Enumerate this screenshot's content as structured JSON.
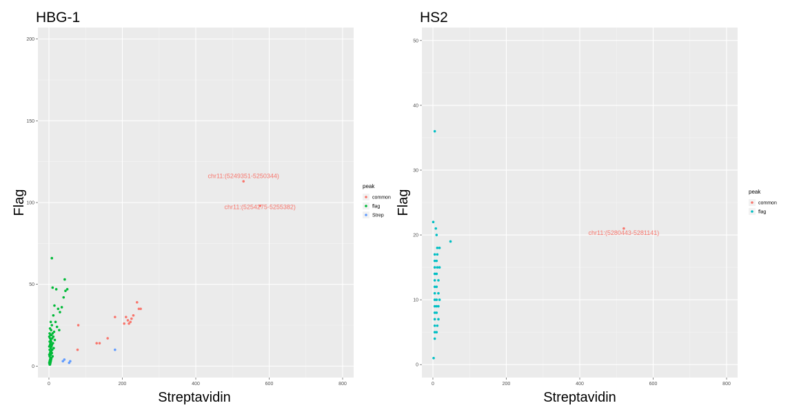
{
  "chart_data": [
    {
      "type": "scatter",
      "title": "HBG-1",
      "xlabel": "Streptavidin",
      "ylabel": "Flag",
      "xlim": [
        -30,
        830
      ],
      "ylim": [
        -7,
        207
      ],
      "xticks": [
        0,
        200,
        400,
        600,
        800
      ],
      "yticks": [
        0,
        50,
        100,
        150,
        200
      ],
      "grid": true,
      "legend": {
        "title": "peak",
        "position": "right"
      },
      "series": [
        {
          "name": "common",
          "color": "#F8766D",
          "x": [
            530,
            575,
            80,
            78,
            130,
            138,
            160,
            180,
            205,
            210,
            215,
            218,
            222,
            225,
            230,
            240,
            245,
            250
          ],
          "y": [
            113,
            98,
            25,
            10,
            14,
            14,
            17,
            30,
            26,
            30,
            28,
            26,
            27,
            29,
            31,
            39,
            35,
            35
          ]
        },
        {
          "name": "flag",
          "color": "#00BA38",
          "x": [
            8,
            43,
            10,
            20,
            50,
            45,
            40,
            25,
            15,
            35,
            30,
            12,
            5,
            18,
            8,
            22,
            3,
            28,
            6,
            14,
            2,
            10,
            4,
            7,
            1,
            12,
            3,
            9,
            5,
            16,
            2,
            6,
            11,
            4,
            8,
            3,
            1,
            7,
            5,
            13,
            2,
            9,
            4,
            6,
            3,
            8,
            1,
            5,
            10,
            2,
            7,
            4,
            6,
            3,
            2,
            5,
            1,
            4,
            3,
            2
          ],
          "y": [
            66,
            53,
            48,
            47,
            47,
            46,
            42,
            35,
            37,
            36,
            33,
            31,
            27,
            27,
            25,
            24,
            23,
            22,
            22,
            21,
            20,
            20,
            19,
            19,
            18,
            18,
            17,
            17,
            16,
            16,
            15,
            15,
            14,
            14,
            13,
            13,
            12,
            12,
            11,
            11,
            10,
            10,
            9,
            9,
            8,
            8,
            7,
            7,
            6,
            6,
            5,
            5,
            4,
            4,
            3,
            3,
            2,
            2,
            1,
            1
          ]
        },
        {
          "name": "Strep",
          "color": "#619CFF",
          "x": [
            38,
            42,
            55,
            58,
            180
          ],
          "y": [
            3,
            4,
            2,
            3,
            10
          ]
        }
      ],
      "annotations": [
        {
          "text": "chr11:(5249351-5250344)",
          "x": 530,
          "y": 115,
          "color": "#F8766D"
        },
        {
          "text": "chr11:(5254275-5255382)",
          "x": 575,
          "y": 96,
          "color": "#F8766D"
        }
      ]
    },
    {
      "type": "scatter",
      "title": "HS2",
      "xlabel": "Streptavidin",
      "ylabel": "Flag",
      "xlim": [
        -30,
        830
      ],
      "ylim": [
        -2,
        52
      ],
      "xticks": [
        0,
        200,
        400,
        600,
        800
      ],
      "yticks": [
        0,
        10,
        20,
        30,
        40,
        50
      ],
      "grid": true,
      "legend": {
        "title": "peak",
        "position": "right"
      },
      "series": [
        {
          "name": "common",
          "color": "#F8766D",
          "x": [
            520
          ],
          "y": [
            21
          ]
        },
        {
          "name": "flag",
          "color": "#00BFC4",
          "x": [
            5,
            1,
            8,
            48,
            10,
            18,
            12,
            5,
            12,
            5,
            10,
            5,
            12,
            18,
            5,
            10,
            5,
            15,
            5,
            10,
            5,
            15,
            5,
            10,
            18,
            5,
            10,
            15,
            5,
            10,
            5,
            15,
            5,
            12,
            5,
            10,
            5,
            2
          ],
          "y": [
            36,
            22,
            21,
            19,
            20,
            18,
            18,
            17,
            17,
            16,
            16,
            15,
            15,
            15,
            14,
            14,
            13,
            13,
            12,
            12,
            11,
            11,
            10,
            10,
            10,
            9,
            9,
            9,
            8,
            8,
            7,
            7,
            6,
            6,
            5,
            5,
            4,
            1
          ]
        }
      ],
      "annotations": [
        {
          "text": "chr11:(5280443-5281141)",
          "x": 520,
          "y": 20,
          "color": "#F8766D"
        }
      ]
    }
  ]
}
